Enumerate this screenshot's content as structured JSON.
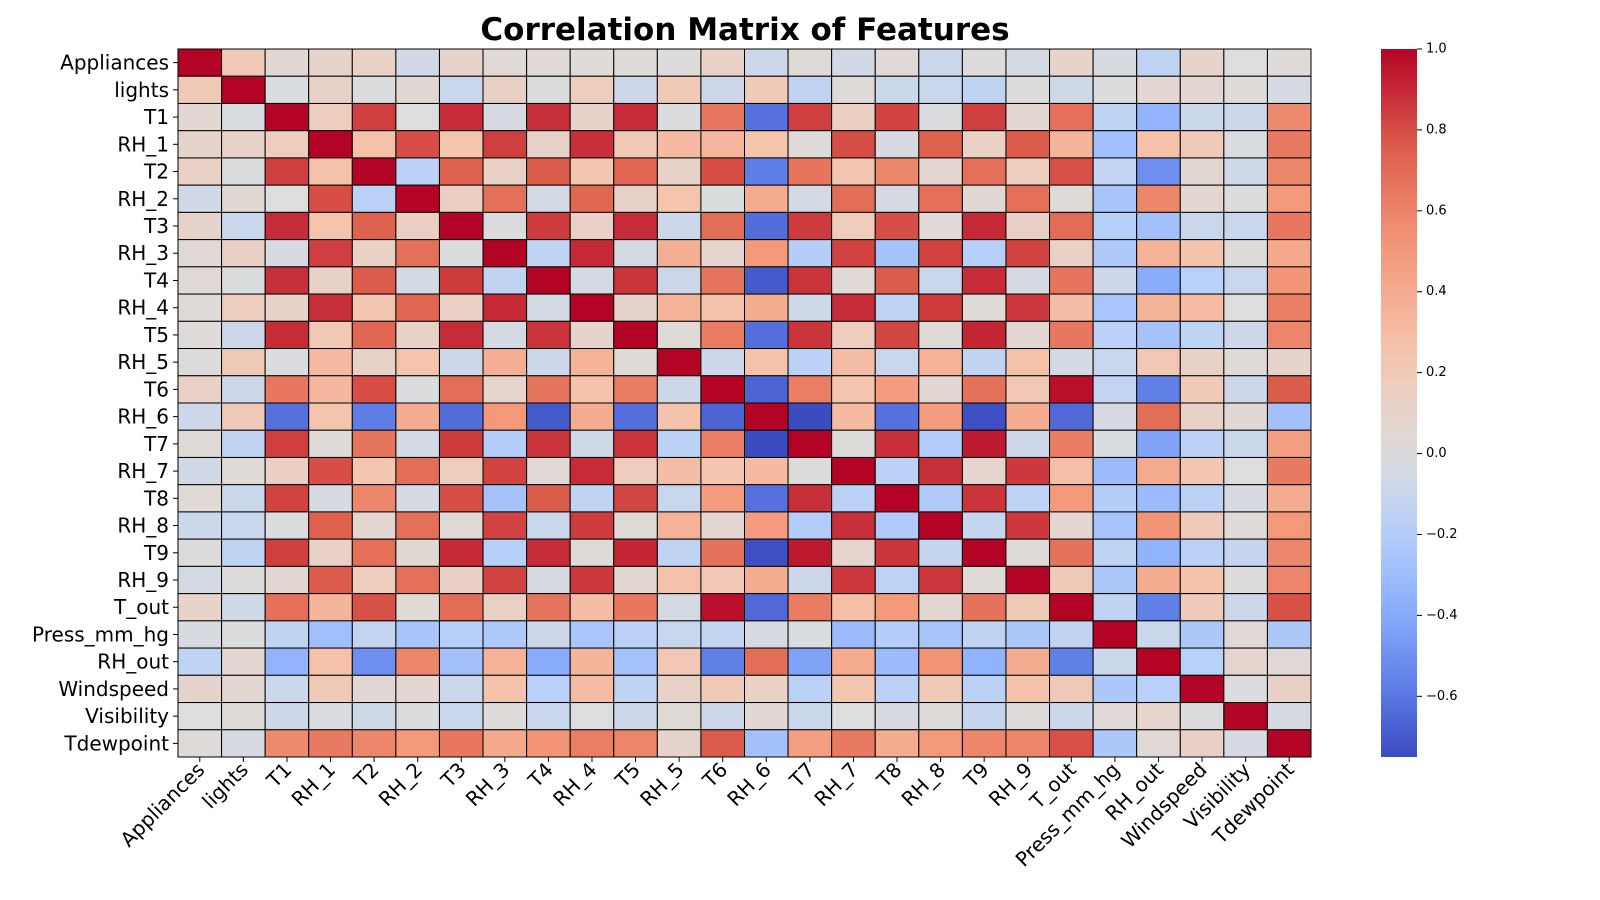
{
  "chart_data": {
    "type": "heatmap",
    "title": "Correlation Matrix of Features",
    "xlabel": "",
    "ylabel": "",
    "labels": [
      "Appliances",
      "lights",
      "T1",
      "RH_1",
      "T2",
      "RH_2",
      "T3",
      "RH_3",
      "T4",
      "RH_4",
      "T5",
      "RH_5",
      "T6",
      "RH_6",
      "T7",
      "RH_7",
      "T8",
      "RH_8",
      "T9",
      "RH_9",
      "T_out",
      "Press_mm_hg",
      "RH_out",
      "Windspeed",
      "Visibility",
      "Tdewpoint"
    ],
    "values": [
      [
        1.0,
        0.2,
        0.06,
        0.09,
        0.12,
        -0.06,
        0.09,
        0.04,
        0.04,
        0.02,
        0.02,
        0.01,
        0.12,
        -0.08,
        0.03,
        -0.06,
        0.04,
        -0.09,
        0.01,
        -0.05,
        0.1,
        -0.03,
        -0.15,
        0.09,
        0.0,
        0.02
      ],
      [
        0.2,
        1.0,
        -0.02,
        0.11,
        -0.01,
        0.05,
        -0.1,
        0.13,
        -0.01,
        0.16,
        -0.08,
        0.2,
        -0.08,
        0.19,
        -0.14,
        0.03,
        -0.09,
        -0.1,
        -0.15,
        0.01,
        -0.07,
        -0.01,
        0.07,
        0.06,
        0.02,
        -0.04
      ],
      [
        0.06,
        -0.02,
        1.0,
        0.16,
        0.84,
        -0.0,
        0.89,
        -0.03,
        0.88,
        0.1,
        0.89,
        -0.01,
        0.65,
        -0.62,
        0.84,
        0.14,
        0.83,
        -0.01,
        0.84,
        0.07,
        0.68,
        -0.15,
        -0.35,
        -0.09,
        -0.08,
        0.57
      ],
      [
        0.09,
        0.11,
        0.16,
        1.0,
        0.27,
        0.8,
        0.25,
        0.84,
        0.11,
        0.88,
        0.21,
        0.31,
        0.32,
        0.25,
        0.02,
        0.8,
        -0.03,
        0.74,
        0.12,
        0.76,
        0.34,
        -0.29,
        0.27,
        0.2,
        -0.02,
        0.64
      ],
      [
        0.12,
        -0.01,
        0.84,
        0.27,
        1.0,
        -0.17,
        0.74,
        0.12,
        0.76,
        0.23,
        0.72,
        0.11,
        0.8,
        -0.58,
        0.66,
        0.23,
        0.58,
        0.07,
        0.68,
        0.16,
        0.79,
        -0.13,
        -0.51,
        0.05,
        -0.07,
        0.58
      ],
      [
        -0.06,
        0.05,
        -0.0,
        0.8,
        -0.17,
        1.0,
        0.14,
        0.68,
        -0.05,
        0.72,
        0.11,
        0.25,
        -0.01,
        0.39,
        -0.05,
        0.69,
        -0.04,
        0.68,
        0.05,
        0.68,
        0.03,
        -0.26,
        0.58,
        0.07,
        -0.01,
        0.5
      ],
      [
        0.09,
        -0.1,
        0.89,
        0.25,
        0.74,
        0.14,
        1.0,
        -0.01,
        0.85,
        0.12,
        0.89,
        -0.08,
        0.69,
        -0.64,
        0.85,
        0.17,
        0.8,
        0.04,
        0.9,
        0.13,
        0.7,
        -0.19,
        -0.28,
        -0.1,
        -0.1,
        0.65
      ],
      [
        0.04,
        0.13,
        -0.03,
        0.84,
        0.12,
        0.68,
        -0.01,
        1.0,
        -0.14,
        0.9,
        -0.05,
        0.38,
        0.08,
        0.51,
        -0.2,
        0.83,
        -0.27,
        0.83,
        -0.19,
        0.83,
        0.12,
        -0.23,
        0.36,
        0.26,
        0.02,
        0.41
      ],
      [
        0.04,
        -0.01,
        0.88,
        0.11,
        0.76,
        -0.05,
        0.85,
        -0.14,
        1.0,
        -0.05,
        0.87,
        -0.08,
        0.66,
        -0.7,
        0.87,
        0.04,
        0.76,
        -0.1,
        0.89,
        -0.03,
        0.66,
        -0.08,
        -0.39,
        -0.18,
        -0.1,
        0.52
      ],
      [
        0.02,
        0.16,
        0.1,
        0.88,
        0.23,
        0.72,
        0.12,
        0.9,
        -0.05,
        1.0,
        0.09,
        0.35,
        0.26,
        0.39,
        -0.07,
        0.89,
        -0.15,
        0.85,
        0.03,
        0.86,
        0.29,
        -0.25,
        0.34,
        0.3,
        0.0,
        0.62
      ],
      [
        0.02,
        -0.08,
        0.89,
        0.21,
        0.72,
        0.11,
        0.89,
        -0.05,
        0.87,
        0.09,
        1.0,
        0.03,
        0.63,
        -0.63,
        0.87,
        0.17,
        0.82,
        0.03,
        0.91,
        0.07,
        0.65,
        -0.17,
        -0.27,
        -0.15,
        -0.08,
        0.59
      ],
      [
        0.01,
        0.2,
        -0.01,
        0.31,
        0.11,
        0.25,
        -0.08,
        0.38,
        -0.08,
        0.35,
        0.03,
        1.0,
        -0.08,
        0.26,
        -0.17,
        0.29,
        -0.11,
        0.36,
        -0.14,
        0.27,
        -0.05,
        -0.11,
        0.21,
        0.11,
        0.03,
        0.09
      ],
      [
        0.12,
        -0.08,
        0.65,
        0.32,
        0.8,
        -0.01,
        0.69,
        0.08,
        0.66,
        0.26,
        0.63,
        -0.08,
        1.0,
        -0.67,
        0.62,
        0.24,
        0.49,
        0.07,
        0.67,
        0.21,
        0.97,
        -0.13,
        -0.57,
        0.2,
        -0.08,
        0.76
      ],
      [
        -0.08,
        0.19,
        -0.62,
        0.25,
        -0.58,
        0.39,
        -0.64,
        0.51,
        -0.7,
        0.39,
        -0.63,
        0.26,
        -0.67,
        1.0,
        -0.75,
        0.31,
        -0.62,
        0.49,
        -0.74,
        0.39,
        -0.65,
        -0.03,
        0.69,
        0.12,
        0.05,
        -0.28
      ],
      [
        0.03,
        -0.14,
        0.84,
        0.02,
        0.66,
        -0.05,
        0.85,
        -0.2,
        0.87,
        -0.07,
        0.87,
        -0.17,
        0.62,
        -0.75,
        1.0,
        0.01,
        0.88,
        -0.21,
        0.94,
        -0.08,
        0.63,
        -0.02,
        -0.43,
        -0.17,
        -0.09,
        0.47
      ],
      [
        -0.06,
        0.03,
        0.14,
        0.8,
        0.23,
        0.69,
        0.17,
        0.83,
        0.04,
        0.89,
        0.17,
        0.29,
        0.24,
        0.31,
        0.01,
        1.0,
        -0.17,
        0.88,
        0.08,
        0.86,
        0.28,
        -0.31,
        0.4,
        0.23,
        0.0,
        0.64
      ],
      [
        0.04,
        -0.09,
        0.83,
        -0.03,
        0.58,
        -0.04,
        0.8,
        -0.27,
        0.76,
        -0.15,
        0.82,
        -0.11,
        0.49,
        -0.62,
        0.88,
        -0.17,
        1.0,
        -0.22,
        0.87,
        -0.16,
        0.5,
        -0.2,
        -0.31,
        -0.17,
        -0.03,
        0.39
      ],
      [
        -0.09,
        -0.1,
        -0.01,
        0.74,
        0.07,
        0.68,
        0.04,
        0.83,
        -0.1,
        0.85,
        0.03,
        0.36,
        0.07,
        0.49,
        -0.21,
        0.88,
        -0.22,
        1.0,
        -0.12,
        0.86,
        0.07,
        -0.26,
        0.52,
        0.19,
        0.02,
        0.51
      ],
      [
        0.01,
        -0.15,
        0.84,
        0.12,
        0.68,
        0.05,
        0.9,
        -0.19,
        0.89,
        0.03,
        0.91,
        -0.14,
        0.67,
        -0.74,
        0.94,
        0.08,
        0.87,
        -0.12,
        1.0,
        0.03,
        0.67,
        -0.15,
        -0.36,
        -0.17,
        -0.12,
        0.58
      ],
      [
        -0.05,
        0.01,
        0.07,
        0.76,
        0.16,
        0.68,
        0.13,
        0.83,
        -0.03,
        0.86,
        0.07,
        0.27,
        0.21,
        0.39,
        -0.08,
        0.86,
        -0.16,
        0.86,
        0.03,
        1.0,
        0.2,
        -0.24,
        0.39,
        0.26,
        0.01,
        0.59
      ],
      [
        0.1,
        -0.07,
        0.68,
        0.34,
        0.79,
        0.03,
        0.7,
        0.12,
        0.66,
        0.29,
        0.65,
        -0.05,
        0.97,
        -0.65,
        0.63,
        0.28,
        0.5,
        0.07,
        0.67,
        0.2,
        1.0,
        -0.14,
        -0.57,
        0.19,
        -0.08,
        0.79
      ],
      [
        -0.03,
        -0.01,
        -0.15,
        -0.29,
        -0.13,
        -0.26,
        -0.19,
        -0.23,
        -0.08,
        -0.25,
        -0.17,
        -0.11,
        -0.13,
        -0.03,
        -0.02,
        -0.31,
        -0.2,
        -0.26,
        -0.15,
        -0.24,
        -0.14,
        1.0,
        -0.09,
        -0.24,
        0.04,
        -0.24
      ],
      [
        -0.15,
        0.07,
        -0.35,
        0.27,
        -0.51,
        0.58,
        -0.28,
        0.36,
        -0.39,
        0.34,
        -0.27,
        0.21,
        -0.57,
        0.69,
        -0.43,
        0.4,
        -0.31,
        0.52,
        -0.36,
        0.39,
        -0.57,
        -0.09,
        1.0,
        -0.18,
        0.08,
        0.04
      ],
      [
        0.09,
        0.06,
        -0.09,
        0.2,
        0.05,
        0.07,
        -0.1,
        0.26,
        -0.18,
        0.3,
        -0.15,
        0.11,
        0.2,
        0.12,
        -0.17,
        0.23,
        -0.17,
        0.19,
        -0.17,
        0.26,
        0.19,
        -0.24,
        -0.18,
        1.0,
        -0.01,
        0.13
      ],
      [
        0.0,
        0.02,
        -0.08,
        -0.02,
        -0.07,
        -0.01,
        -0.1,
        0.02,
        -0.1,
        0.0,
        -0.08,
        0.03,
        -0.08,
        0.05,
        -0.09,
        0.0,
        -0.03,
        0.02,
        -0.12,
        0.01,
        -0.08,
        0.04,
        0.08,
        -0.01,
        1.0,
        -0.04
      ],
      [
        0.02,
        -0.04,
        0.57,
        0.64,
        0.58,
        0.5,
        0.65,
        0.41,
        0.52,
        0.62,
        0.59,
        0.09,
        0.76,
        -0.28,
        0.47,
        0.64,
        0.39,
        0.51,
        0.58,
        0.59,
        0.79,
        -0.24,
        0.04,
        0.13,
        -0.04,
        1.0
      ]
    ],
    "vmin": -0.75,
    "vmax": 1.0,
    "colormap": "coolwarm",
    "colorbar_ticks": [
      1.0,
      0.8,
      0.6,
      0.4,
      0.2,
      0.0,
      -0.2,
      -0.4,
      -0.6
    ],
    "colorbar_tick_labels": [
      "1.0",
      "0.8",
      "0.6",
      "0.4",
      "0.2",
      "0.0",
      "−0.2",
      "−0.4",
      "−0.6"
    ],
    "grid": true
  }
}
